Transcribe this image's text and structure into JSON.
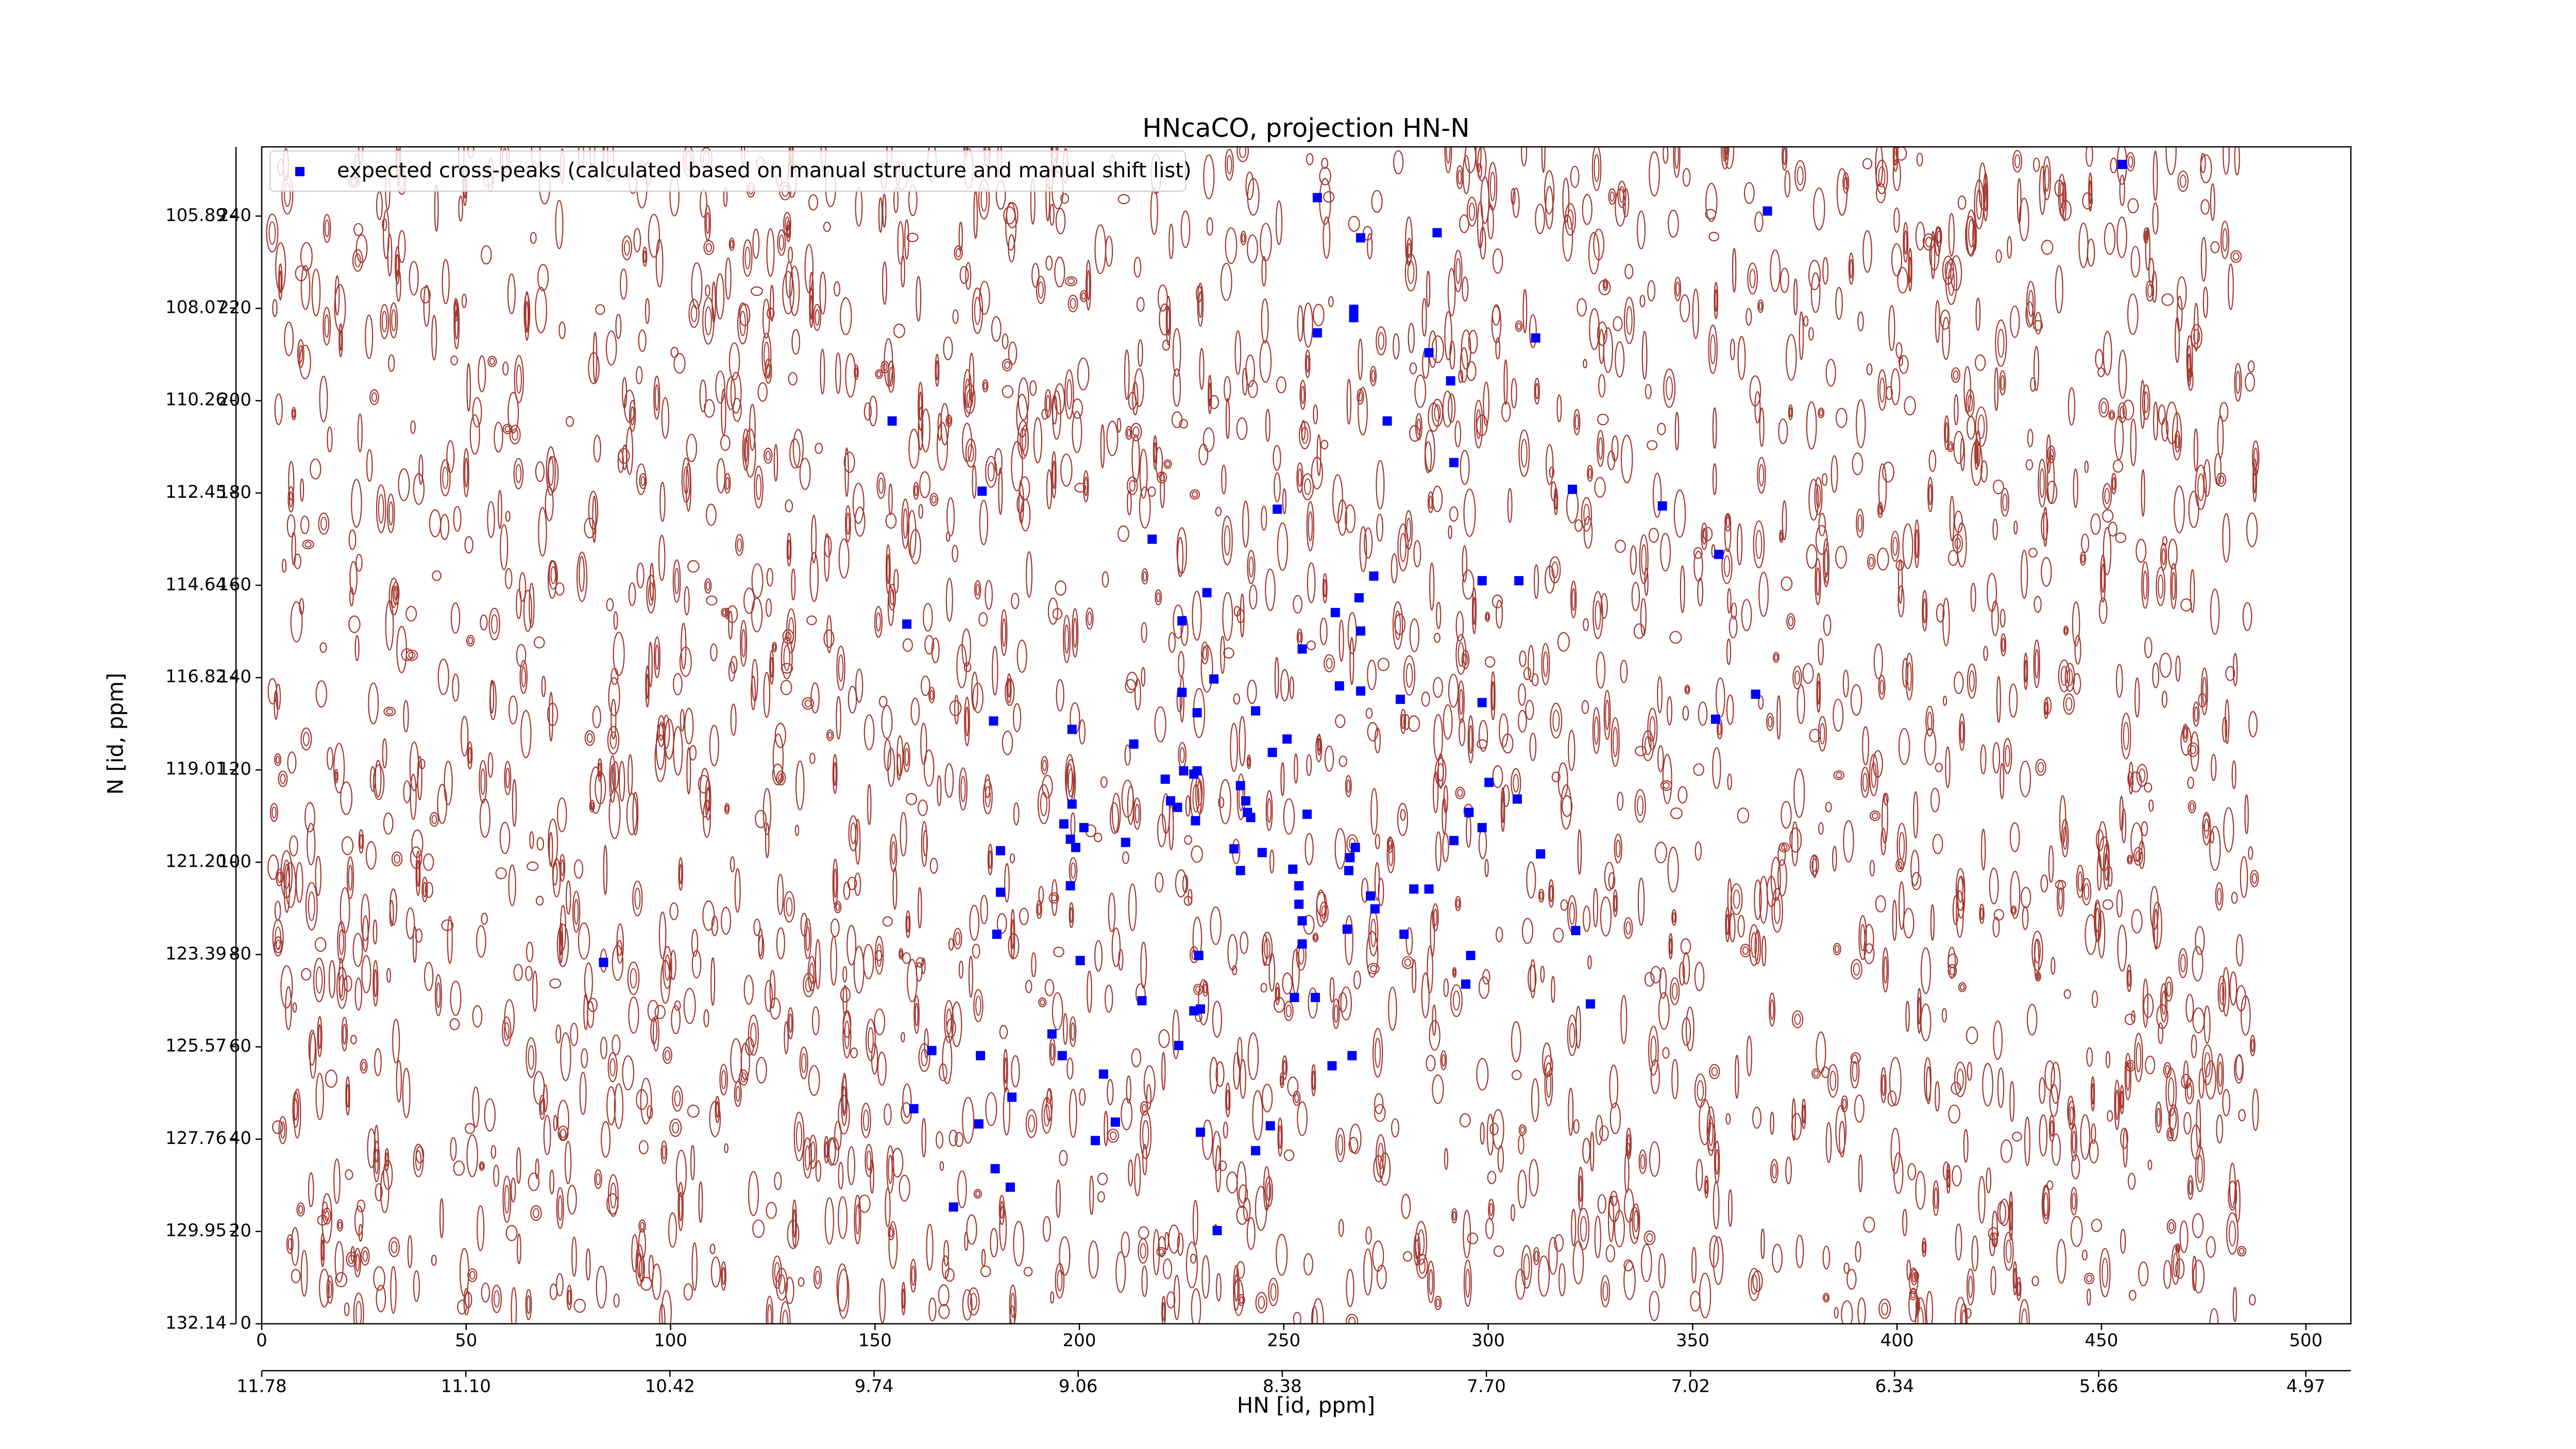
{
  "chart_data": {
    "type": "scatter",
    "title": "HNcaCO, projection HN-N",
    "xlabel": "HN [id, ppm]",
    "ylabel": "N [id, ppm]",
    "legend": "upper left",
    "xlim": [
      0,
      511
    ],
    "ylim": [
      0,
      255
    ],
    "xticks": [
      0,
      50,
      100,
      150,
      200,
      250,
      300,
      350,
      400,
      450,
      500
    ],
    "yticks": [
      0,
      20,
      40,
      60,
      80,
      100,
      120,
      140,
      160,
      180,
      200,
      220,
      240
    ],
    "x2lim": [
      11.78,
      4.82
    ],
    "x2ticks": [
      11.78,
      {
        "value": 11.1,
        "label": "11.10"
      },
      10.42,
      9.74,
      9.06,
      8.38,
      {
        "value": 7.7,
        "label": "7.70"
      },
      7.02,
      6.34,
      5.66,
      4.97
    ],
    "y2lim": [
      132.14,
      104.25
    ],
    "y2ticks": [
      132.14,
      129.95,
      127.76,
      125.57,
      123.39,
      {
        "value": 121.2,
        "label": "121.20"
      },
      119.01,
      116.82,
      114.64,
      112.45,
      110.26,
      108.07,
      105.89
    ],
    "x": [
      455.1,
      258.2,
      368.3,
      268.8,
      287.5,
      267.1,
      267.1,
      258.2,
      311.6,
      285.5,
      290.8,
      154.2,
      275.3,
      291.6,
      176.2,
      320.6,
      248.4,
      342.6,
      217.8,
      356.4,
      272.0,
      298.5,
      307.5,
      231.2,
      268.4,
      262.6,
      225.1,
      157.8,
      268.8,
      254.5,
      232.9,
      263.6,
      268.8,
      225.1,
      278.5,
      365.4,
      298.5,
      228.8,
      243.1,
      179.0,
      355.6,
      198.2,
      250.8,
      213.3,
      247.2,
      225.5,
      228.8,
      228.0,
      221.0,
      239.4,
      300.2,
      240.7,
      222.3,
      224.0,
      307.1,
      198.2,
      241.1,
      241.9,
      295.3,
      255.7,
      228.4,
      196.2,
      201.1,
      298.5,
      197.8,
      291.6,
      199.1,
      211.3,
      237.8,
      267.5,
      180.7,
      244.7,
      312.8,
      266.2,
      239.4,
      252.2,
      265.9,
      253.7,
      197.8,
      180.7,
      281.8,
      285.5,
      271.2,
      253.7,
      272.3,
      254.5,
      265.5,
      321.4,
      279.4,
      179.8,
      254.5,
      229.2,
      295.7,
      200.2,
      83.6,
      294.5,
      252.6,
      257.7,
      215.3,
      325.0,
      229.6,
      228.0,
      193.3,
      224.3,
      163.9,
      195.8,
      175.8,
      266.7,
      261.8,
      205.9,
      183.5,
      159.5,
      208.8,
      246.7,
      175.4,
      229.6,
      203.9,
      243.1,
      179.4,
      183.1,
      169.2,
      233.7
    ],
    "series": [
      {
        "name": "expected cross-peaks (calculated based on manual structure and manual shift list)",
        "color": "#0000ff",
        "values": [
          251.2,
          244.0,
          241.1,
          235.3,
          236.4,
          219.8,
          218.0,
          214.7,
          213.6,
          210.4,
          204.3,
          195.6,
          195.6,
          186.6,
          180.4,
          180.8,
          176.5,
          177.2,
          170.0,
          166.7,
          162.0,
          161.0,
          161.0,
          158.4,
          157.3,
          154.1,
          152.3,
          151.6,
          150.1,
          146.2,
          139.7,
          138.2,
          137.1,
          136.8,
          135.3,
          136.4,
          134.6,
          132.4,
          132.8,
          130.6,
          131.0,
          128.8,
          126.7,
          125.6,
          123.8,
          119.8,
          119.8,
          119.1,
          118.0,
          116.6,
          117.3,
          113.3,
          113.3,
          111.9,
          113.7,
          112.6,
          110.8,
          109.7,
          110.8,
          110.4,
          109.0,
          108.3,
          107.5,
          107.5,
          105.0,
          104.7,
          103.2,
          104.3,
          102.9,
          103.2,
          102.5,
          102.1,
          101.8,
          101.0,
          98.2,
          98.5,
          98.2,
          94.9,
          94.9,
          93.5,
          94.2,
          94.2,
          92.7,
          90.9,
          89.9,
          87.3,
          85.5,
          85.2,
          84.4,
          84.4,
          82.3,
          79.8,
          79.8,
          78.7,
          78.3,
          73.6,
          70.7,
          70.7,
          70.0,
          69.3,
          68.2,
          67.8,
          62.8,
          60.3,
          59.2,
          58.1,
          58.1,
          58.1,
          55.9,
          54.1,
          49.1,
          46.6,
          43.7,
          42.9,
          43.3,
          41.5,
          39.7,
          37.5,
          33.6,
          29.6,
          25.3,
          20.2
        ]
      }
    ]
  }
}
